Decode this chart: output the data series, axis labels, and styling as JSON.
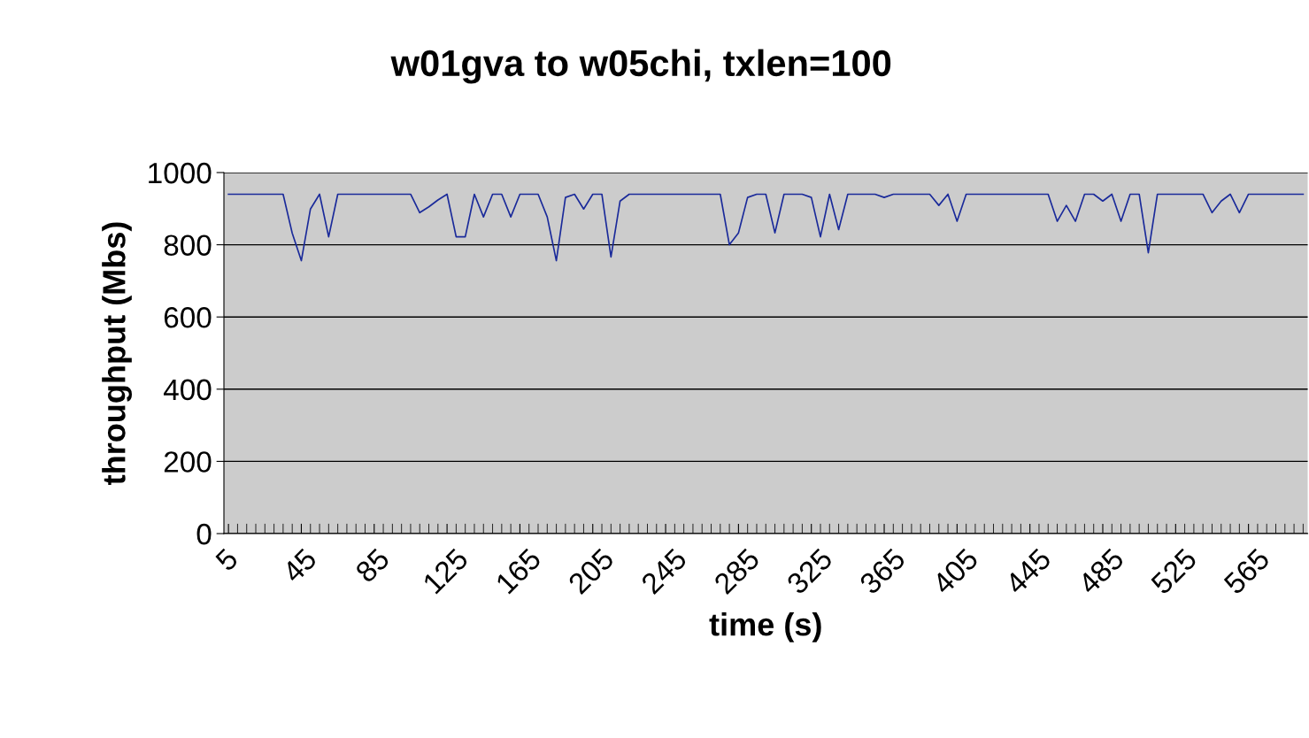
{
  "chart_data": {
    "type": "line",
    "title": "w01gva to w05chi, txlen=100",
    "xlabel": "time (s)",
    "ylabel": "throughput (Mbs)",
    "categories": [
      "5",
      null,
      null,
      null,
      null,
      null,
      null,
      null,
      "45",
      null,
      null,
      null,
      null,
      null,
      null,
      null,
      "85",
      null,
      null,
      null,
      null,
      null,
      null,
      null,
      "125",
      null,
      null,
      null,
      null,
      null,
      null,
      null,
      "165",
      null,
      null,
      null,
      null,
      null,
      null,
      null,
      "205",
      null,
      null,
      null,
      null,
      null,
      null,
      null,
      "245",
      null,
      null,
      null,
      null,
      null,
      null,
      null,
      "285",
      null,
      null,
      null,
      null,
      null,
      null,
      null,
      "325",
      null,
      null,
      null,
      null,
      null,
      null,
      null,
      "365",
      null,
      null,
      null,
      null,
      null,
      null,
      null,
      "405",
      null,
      null,
      null,
      null,
      null,
      null,
      null,
      "445",
      null,
      null,
      null,
      null,
      null,
      null,
      null,
      "485",
      null,
      null,
      null,
      null,
      null,
      null,
      null,
      "525",
      null,
      null,
      null,
      null,
      null,
      null,
      null,
      "565",
      null,
      null,
      null,
      null,
      null,
      null
    ],
    "series": [
      {
        "color": "#1a2a9a",
        "values": [
          940,
          940,
          940,
          940,
          940,
          940,
          940,
          832,
          756,
          899,
          940,
          822,
          940,
          940,
          940,
          940,
          940,
          940,
          940,
          940,
          940,
          889,
          905,
          924,
          940,
          822,
          822,
          940,
          877,
          940,
          940,
          877,
          940,
          940,
          940,
          877,
          756,
          931,
          940,
          899,
          940,
          940,
          766,
          921,
          940,
          940,
          940,
          940,
          940,
          940,
          940,
          940,
          940,
          940,
          940,
          800,
          833,
          931,
          940,
          940,
          833,
          940,
          940,
          940,
          931,
          822,
          940,
          842,
          940,
          940,
          940,
          940,
          931,
          940,
          940,
          940,
          940,
          940,
          909,
          940,
          865,
          940,
          940,
          940,
          940,
          940,
          940,
          940,
          940,
          940,
          940,
          865,
          909,
          865,
          940,
          940,
          921,
          940,
          865,
          940,
          940,
          778,
          940,
          940,
          940,
          940,
          940,
          940,
          889,
          921,
          940,
          889,
          940,
          940,
          940,
          940,
          940,
          940,
          940
        ]
      }
    ],
    "ylim": [
      0,
      1000
    ],
    "yticks": [
      0,
      200,
      400,
      600,
      800,
      1000
    ],
    "grid": "y",
    "marker": "none",
    "line_style": "solid"
  }
}
